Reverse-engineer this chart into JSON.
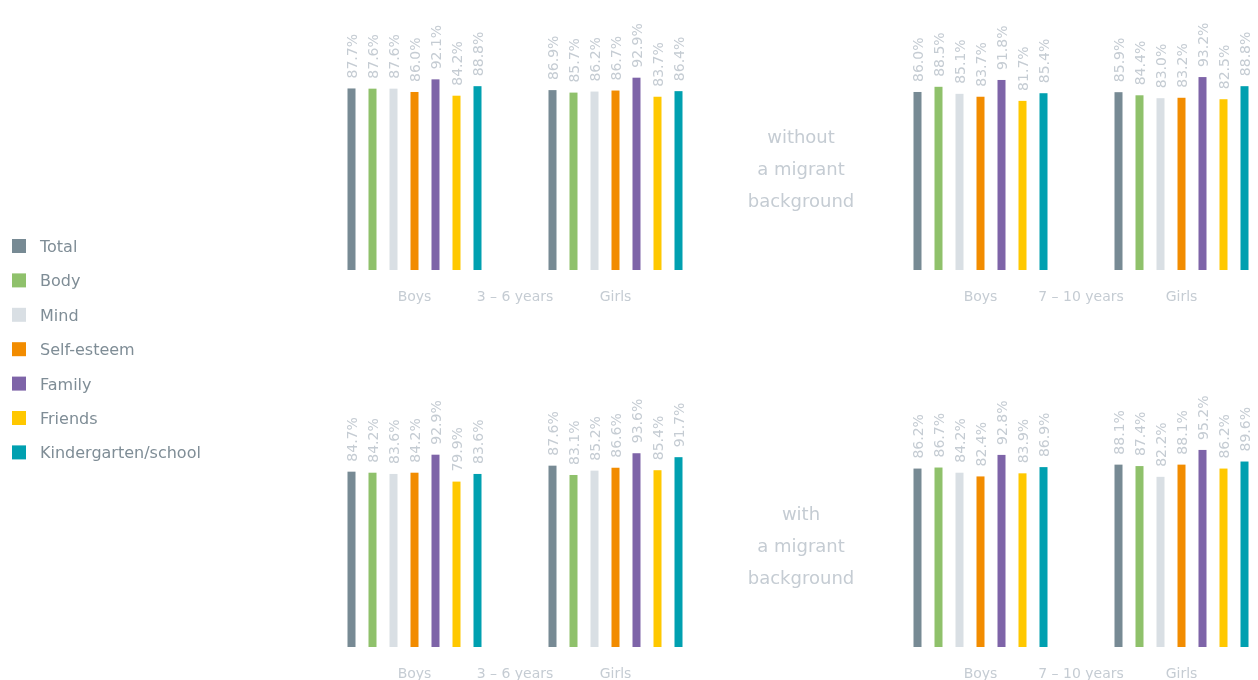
{
  "chart_data": [
    {
      "type": "bar",
      "categories": [
        "Boys",
        "Girls"
      ],
      "xlabel": "3 – 6 years",
      "legend": "left",
      "series": [
        {
          "name": "Total",
          "color": "#778a94",
          "values": [
            87.7,
            86.9
          ],
          "value_labels": [
            "87.7%",
            "86.9%"
          ]
        },
        {
          "name": "Body",
          "color": "#8fc16b",
          "values": [
            87.6,
            85.7
          ],
          "value_labels": [
            "87.6%",
            "85.7%"
          ]
        },
        {
          "name": "Mind",
          "color": "#d9dfe4",
          "values": [
            87.6,
            86.2
          ],
          "value_labels": [
            "87.6%",
            "86.2%"
          ]
        },
        {
          "name": "Self-esteem",
          "color": "#f28c00",
          "values": [
            86.0,
            86.7
          ],
          "value_labels": [
            "86.0%",
            "86.7%"
          ]
        },
        {
          "name": "Family",
          "color": "#7e64a8",
          "values": [
            92.1,
            92.9
          ],
          "value_labels": [
            "92.1%",
            "92.9%"
          ]
        },
        {
          "name": "Friends",
          "color": "#ffc800",
          "values": [
            84.2,
            83.7
          ],
          "value_labels": [
            "84.2%",
            "83.7%"
          ]
        },
        {
          "name": "Kindergarten/school",
          "color": "#00a0b0",
          "values": [
            88.8,
            86.4
          ],
          "value_labels": [
            "88.8%",
            "86.4%"
          ]
        }
      ]
    },
    {
      "type": "bar",
      "categories": [
        "Boys",
        "Girls"
      ],
      "xlabel": "7 – 10 years",
      "annotations": [
        "without\na migrant\nbackground"
      ],
      "series": [
        {
          "color": "#778a94",
          "values": [
            86.0,
            85.9
          ],
          "value_labels": [
            "86.0%",
            "85.9%"
          ]
        },
        {
          "color": "#8fc16b",
          "values": [
            88.5,
            84.4
          ],
          "value_labels": [
            "88.5%",
            "84.4%"
          ]
        },
        {
          "color": "#d9dfe4",
          "values": [
            85.1,
            83.0
          ],
          "value_labels": [
            "85.1%",
            "83.0%"
          ]
        },
        {
          "color": "#f28c00",
          "values": [
            83.7,
            83.2
          ],
          "value_labels": [
            "83.7%",
            "83.2%"
          ]
        },
        {
          "color": "#7e64a8",
          "values": [
            91.8,
            93.2
          ],
          "value_labels": [
            "91.8%",
            "93.2%"
          ]
        },
        {
          "color": "#ffc800",
          "values": [
            81.7,
            82.5
          ],
          "value_labels": [
            "81.7%",
            "82.5%"
          ]
        },
        {
          "color": "#00a0b0",
          "values": [
            85.4,
            88.8
          ],
          "value_labels": [
            "85.4%",
            "88.8%"
          ]
        }
      ]
    },
    {
      "type": "bar",
      "categories": [
        "Boys",
        "Girls"
      ],
      "xlabel": "3 – 6 years",
      "series": [
        {
          "color": "#778a94",
          "values": [
            84.7,
            87.6
          ],
          "value_labels": [
            "84.7%",
            "87.6%"
          ]
        },
        {
          "color": "#8fc16b",
          "values": [
            84.2,
            83.1
          ],
          "value_labels": [
            "84.2%",
            "83.1%"
          ]
        },
        {
          "color": "#d9dfe4",
          "values": [
            83.6,
            85.2
          ],
          "value_labels": [
            "83.6%",
            "85.2%"
          ]
        },
        {
          "color": "#f28c00",
          "values": [
            84.2,
            86.6
          ],
          "value_labels": [
            "84.2%",
            "86.6%"
          ]
        },
        {
          "color": "#7e64a8",
          "values": [
            92.9,
            93.6
          ],
          "value_labels": [
            "92.9%",
            "93.6%"
          ]
        },
        {
          "color": "#ffc800",
          "values": [
            79.9,
            85.4
          ],
          "value_labels": [
            "79.9%",
            "85.4%"
          ]
        },
        {
          "color": "#00a0b0",
          "values": [
            83.6,
            91.7
          ],
          "value_labels": [
            "83.6%",
            "91.7%"
          ]
        }
      ]
    },
    {
      "type": "bar",
      "categories": [
        "Boys",
        "Girls"
      ],
      "xlabel": "7 – 10 years",
      "annotations": [
        "with\na migrant\nbackground"
      ],
      "series": [
        {
          "color": "#778a94",
          "values": [
            86.2,
            88.1
          ],
          "value_labels": [
            "86.2%",
            "88.1%"
          ]
        },
        {
          "color": "#8fc16b",
          "values": [
            86.7,
            87.4
          ],
          "value_labels": [
            "86.7%",
            "87.4%"
          ]
        },
        {
          "color": "#d9dfe4",
          "values": [
            84.2,
            82.2
          ],
          "value_labels": [
            "84.2%",
            "82.2%"
          ]
        },
        {
          "color": "#f28c00",
          "values": [
            82.4,
            88.1
          ],
          "value_labels": [
            "82.4%",
            "88.1%"
          ]
        },
        {
          "color": "#7e64a8",
          "values": [
            92.8,
            95.2
          ],
          "value_labels": [
            "92.8%",
            "95.2%"
          ]
        },
        {
          "color": "#ffc800",
          "values": [
            83.9,
            86.2
          ],
          "value_labels": [
            "83.9%",
            "86.2%"
          ]
        },
        {
          "color": "#00a0b0",
          "values": [
            86.9,
            89.6
          ],
          "value_labels": [
            "86.9%",
            "89.6%"
          ]
        }
      ]
    }
  ]
}
